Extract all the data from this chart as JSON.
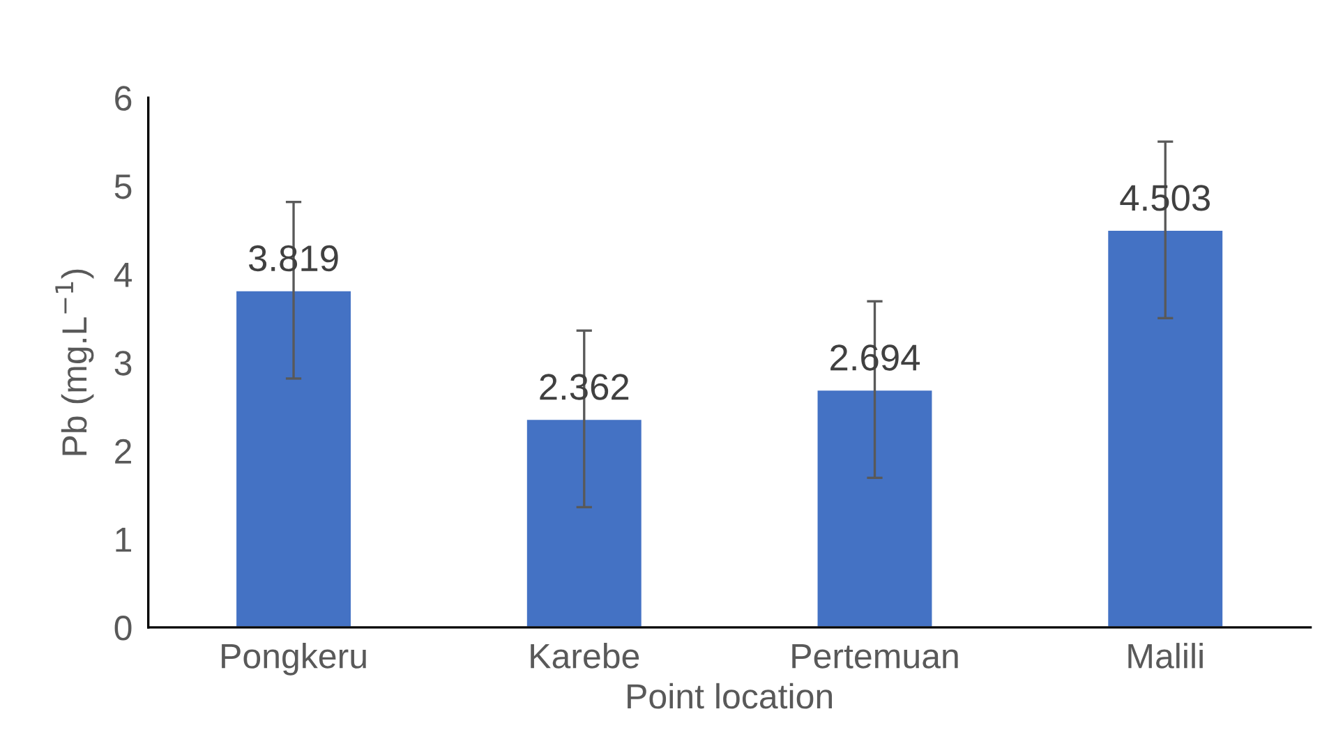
{
  "chart_data": {
    "type": "bar",
    "xlabel": "Point location",
    "ylabel": "Pb (mg.L$^{−1}$)",
    "categories": [
      "Pongkeru",
      "Karebe",
      "Pertemuan",
      "Malili"
    ],
    "values": [
      3.819,
      2.362,
      2.694,
      4.503
    ],
    "errors": [
      1,
      1,
      1,
      1
    ],
    "color": "#4472c4",
    "ylim": [
      0,
      6
    ],
    "yticks": [
      0,
      1,
      2,
      3,
      4,
      5,
      6
    ],
    "data_labels": true,
    "grid": false,
    "legend": false
  }
}
